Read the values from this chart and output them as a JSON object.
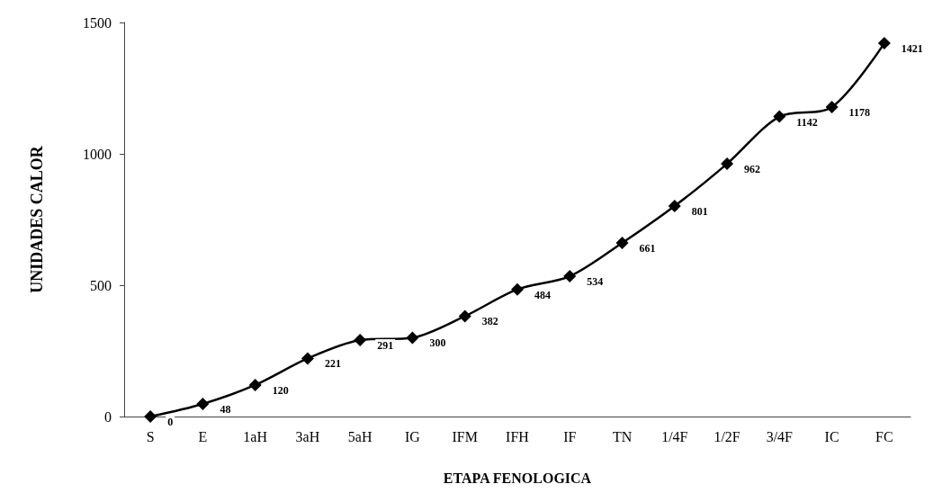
{
  "chart_data": {
    "type": "line",
    "xlabel": "ETAPA FENOLOGICA",
    "ylabel": "UNIDADES CALOR",
    "categories": [
      "S",
      "E",
      "1aH",
      "3aH",
      "5aH",
      "IG",
      "IFM",
      "IFH",
      "IF",
      "TN",
      "1/4F",
      "1/2F",
      "3/4F",
      "IC",
      "FC"
    ],
    "series": [
      {
        "color": "#000000",
        "values": [
          0,
          48,
          120,
          221,
          291,
          300,
          382,
          484,
          534,
          661,
          801,
          962,
          1142,
          1178,
          1421
        ]
      }
    ],
    "ylim": [
      0,
      1500
    ],
    "yticks": [
      0,
      500,
      1000,
      1500
    ],
    "marker": "diamond",
    "line_style": "solid",
    "data_labels": true,
    "grid": false
  }
}
